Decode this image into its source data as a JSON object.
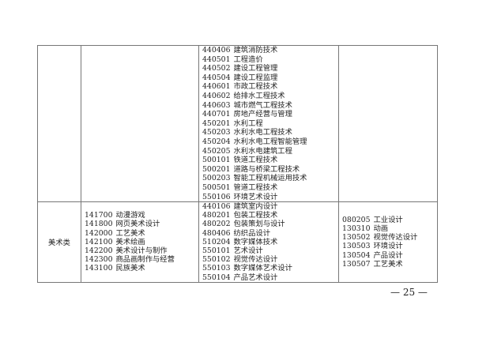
{
  "rows": [
    {
      "category": "",
      "col2": [],
      "col3": [
        [
          "440406",
          "建筑消防技术"
        ],
        [
          "440501",
          "工程造价"
        ],
        [
          "440502",
          "建设工程管理"
        ],
        [
          "440504",
          "建设工程监理"
        ],
        [
          "440601",
          "市政工程技术"
        ],
        [
          "440602",
          "给排水工程技术"
        ],
        [
          "440603",
          "城市燃气工程技术"
        ],
        [
          "440701",
          "房地产经营与管理"
        ],
        [
          "450201",
          "水利工程"
        ],
        [
          "450203",
          "水利水电工程技术"
        ],
        [
          "450204",
          "水利水电工程智能管理"
        ],
        [
          "450205",
          "水利水电建筑工程"
        ],
        [
          "500101",
          "铁道工程技术"
        ],
        [
          "500201",
          "道路与桥梁工程技术"
        ],
        [
          "500203",
          "智能工程机械运用技术"
        ],
        [
          "500501",
          "管道工程技术"
        ],
        [
          "550106",
          "环境艺术设计"
        ]
      ],
      "col4": []
    },
    {
      "category": "美术类",
      "col2": [
        [
          "141700",
          "动漫游戏"
        ],
        [
          "141800",
          "网页美术设计"
        ],
        [
          "142000",
          "工艺美术"
        ],
        [
          "142100",
          "美术绘画"
        ],
        [
          "142200",
          "美术设计与制作"
        ],
        [
          "142300",
          "商品画制作与经营"
        ],
        [
          "143100",
          "民族美术"
        ]
      ],
      "col3": [
        [
          "440106",
          "建筑室内设计"
        ],
        [
          "480201",
          "包装工程技术"
        ],
        [
          "480202",
          "包装策划与设计"
        ],
        [
          "480406",
          "纺织品设计"
        ],
        [
          "510204",
          "数字媒体技术"
        ],
        [
          "550101",
          "艺术设计"
        ],
        [
          "550102",
          "视觉传达设计"
        ],
        [
          "550103",
          "数字媒体艺术设计"
        ],
        [
          "550104",
          "产品艺术设计"
        ]
      ],
      "col4": [
        [
          "080205",
          "工业设计"
        ],
        [
          "130310",
          "动画"
        ],
        [
          "130502",
          "视觉传达设计"
        ],
        [
          "130503",
          "环境设计"
        ],
        [
          "130504",
          "产品设计"
        ],
        [
          "130507",
          "工艺美术"
        ]
      ]
    }
  ],
  "page_number": "— 25 —"
}
